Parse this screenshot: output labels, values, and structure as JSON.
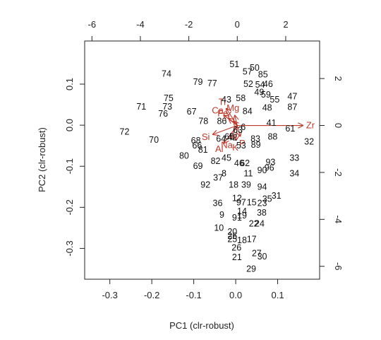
{
  "chart_data": {
    "type": "biplot",
    "xlabel": "PC1 (clr-robust)",
    "ylabel": "PC2 (clr-robust)",
    "xlim": [
      -0.36,
      0.2
    ],
    "ylim": [
      -0.375,
      0.205
    ],
    "x_ticks": [
      "-0.3",
      "-0.2",
      "-0.1",
      "0.0",
      "0.1"
    ],
    "y_ticks": [
      "-0.3",
      "-0.2",
      "-0.1",
      "0.0",
      "0.1"
    ],
    "top_axis": {
      "lim": [
        -6.3,
        3.4
      ],
      "ticks": [
        "-6",
        "-4",
        "-2",
        "0",
        "2"
      ]
    },
    "right_axis": {
      "lim": [
        -6.55,
        3.6
      ],
      "ticks": [
        "-6",
        "-4",
        "-2",
        "0",
        "2"
      ]
    },
    "arrow_color": "#c0392b",
    "observations": [
      {
        "label": "74",
        "x": -0.165,
        "y": 0.125
      },
      {
        "label": "79",
        "x": -0.09,
        "y": 0.105
      },
      {
        "label": "77",
        "x": -0.056,
        "y": 0.102
      },
      {
        "label": "51",
        "x": -0.003,
        "y": 0.148
      },
      {
        "label": "50",
        "x": 0.045,
        "y": 0.14
      },
      {
        "label": "57",
        "x": 0.028,
        "y": 0.13
      },
      {
        "label": "85",
        "x": 0.065,
        "y": 0.123
      },
      {
        "label": "52",
        "x": 0.03,
        "y": 0.1
      },
      {
        "label": "54",
        "x": 0.058,
        "y": 0.098
      },
      {
        "label": "46",
        "x": 0.077,
        "y": 0.1
      },
      {
        "label": "49",
        "x": 0.056,
        "y": 0.08
      },
      {
        "label": "59",
        "x": 0.072,
        "y": 0.074
      },
      {
        "label": "55",
        "x": 0.093,
        "y": 0.062
      },
      {
        "label": "47",
        "x": 0.135,
        "y": 0.07
      },
      {
        "label": "75",
        "x": -0.16,
        "y": 0.066
      },
      {
        "label": "71",
        "x": -0.225,
        "y": 0.045
      },
      {
        "label": "73",
        "x": -0.163,
        "y": 0.045
      },
      {
        "label": "76",
        "x": -0.173,
        "y": 0.028
      },
      {
        "label": "43",
        "x": -0.022,
        "y": 0.062
      },
      {
        "label": "58",
        "x": 0.012,
        "y": 0.066
      },
      {
        "label": "84",
        "x": 0.028,
        "y": 0.034
      },
      {
        "label": "48",
        "x": 0.075,
        "y": 0.042
      },
      {
        "label": "87",
        "x": 0.135,
        "y": 0.044
      },
      {
        "label": "67",
        "x": -0.105,
        "y": 0.033
      },
      {
        "label": "78",
        "x": -0.077,
        "y": 0.01
      },
      {
        "label": "86",
        "x": -0.033,
        "y": 0.01
      },
      {
        "label": "41",
        "x": 0.085,
        "y": 0.005
      },
      {
        "label": "61",
        "x": 0.13,
        "y": -0.008
      },
      {
        "label": "72",
        "x": -0.265,
        "y": -0.016
      },
      {
        "label": "70",
        "x": -0.195,
        "y": -0.036
      },
      {
        "label": "68",
        "x": -0.095,
        "y": -0.038
      },
      {
        "label": "66",
        "x": -0.092,
        "y": -0.05
      },
      {
        "label": "64",
        "x": -0.035,
        "y": -0.033
      },
      {
        "label": "83",
        "x": 0.047,
        "y": -0.033
      },
      {
        "label": "88",
        "x": 0.088,
        "y": -0.028
      },
      {
        "label": "89",
        "x": 0.048,
        "y": -0.048
      },
      {
        "label": "32",
        "x": 0.175,
        "y": -0.04
      },
      {
        "label": "81",
        "x": -0.078,
        "y": -0.06
      },
      {
        "label": "80",
        "x": -0.123,
        "y": -0.075
      },
      {
        "label": "45",
        "x": -0.022,
        "y": -0.08
      },
      {
        "label": "82",
        "x": -0.048,
        "y": -0.088
      },
      {
        "label": "46",
        "x": 0.008,
        "y": -0.093
      },
      {
        "label": "62",
        "x": 0.022,
        "y": -0.093
      },
      {
        "label": "69",
        "x": -0.09,
        "y": -0.1
      },
      {
        "label": "33",
        "x": 0.14,
        "y": -0.08
      },
      {
        "label": "93",
        "x": 0.083,
        "y": -0.09
      },
      {
        "label": "96",
        "x": 0.08,
        "y": -0.104
      },
      {
        "label": "90",
        "x": 0.063,
        "y": -0.11
      },
      {
        "label": "34",
        "x": 0.14,
        "y": -0.118
      },
      {
        "label": "8",
        "x": -0.028,
        "y": -0.118
      },
      {
        "label": "11",
        "x": 0.03,
        "y": -0.118
      },
      {
        "label": "37",
        "x": -0.042,
        "y": -0.128
      },
      {
        "label": "92",
        "x": -0.072,
        "y": -0.145
      },
      {
        "label": "18",
        "x": -0.005,
        "y": -0.145
      },
      {
        "label": "39",
        "x": 0.025,
        "y": -0.145
      },
      {
        "label": "94",
        "x": 0.063,
        "y": -0.15
      },
      {
        "label": "31",
        "x": 0.097,
        "y": -0.172
      },
      {
        "label": "35",
        "x": 0.075,
        "y": -0.18
      },
      {
        "label": "12",
        "x": 0.003,
        "y": -0.178
      },
      {
        "label": "97",
        "x": 0.013,
        "y": -0.188
      },
      {
        "label": "15",
        "x": 0.038,
        "y": -0.188
      },
      {
        "label": "23",
        "x": 0.063,
        "y": -0.19
      },
      {
        "label": "36",
        "x": -0.043,
        "y": -0.19
      },
      {
        "label": "14",
        "x": 0.015,
        "y": -0.21
      },
      {
        "label": "38",
        "x": 0.062,
        "y": -0.213
      },
      {
        "label": "9",
        "x": -0.033,
        "y": -0.218
      },
      {
        "label": "19",
        "x": 0.015,
        "y": -0.22
      },
      {
        "label": "91",
        "x": 0.003,
        "y": -0.225
      },
      {
        "label": "22",
        "x": 0.043,
        "y": -0.24
      },
      {
        "label": "24",
        "x": 0.057,
        "y": -0.24
      },
      {
        "label": "10",
        "x": -0.04,
        "y": -0.25
      },
      {
        "label": "20",
        "x": -0.008,
        "y": -0.26
      },
      {
        "label": "26",
        "x": -0.008,
        "y": -0.27
      },
      {
        "label": "17",
        "x": 0.038,
        "y": -0.278
      },
      {
        "label": "25",
        "x": -0.008,
        "y": -0.278
      },
      {
        "label": "18",
        "x": 0.015,
        "y": -0.28
      },
      {
        "label": "26",
        "x": 0.002,
        "y": -0.298
      },
      {
        "label": "27",
        "x": 0.05,
        "y": -0.312
      },
      {
        "label": "30",
        "x": 0.063,
        "y": -0.32
      },
      {
        "label": "21",
        "x": 0.003,
        "y": -0.322
      },
      {
        "label": "29",
        "x": 0.037,
        "y": -0.35
      },
      {
        "label": "42",
        "x": -0.008,
        "y": -0.03
      },
      {
        "label": "63",
        "x": 0.005,
        "y": -0.012
      },
      {
        "label": "65",
        "x": -0.015,
        "y": -0.028
      },
      {
        "label": "6",
        "x": 0.018,
        "y": -0.005
      },
      {
        "label": "53",
        "x": 0.013,
        "y": -0.05
      }
    ],
    "variables": [
      {
        "label": "Zr",
        "x": 2.7,
        "y": 0.0
      },
      {
        "label": "Si",
        "x": -1.0,
        "y": -0.38
      },
      {
        "label": "Y",
        "x": -0.15,
        "y": 0.18
      },
      {
        "label": "Ti",
        "x": -0.45,
        "y": 0.72
      },
      {
        "label": "Ca",
        "x": -0.55,
        "y": 0.43
      },
      {
        "label": "Mg",
        "x": -0.1,
        "y": 0.42
      },
      {
        "label": "Fe",
        "x": -0.35,
        "y": 0.3
      },
      {
        "label": "Al",
        "x": -0.55,
        "y": -0.75
      },
      {
        "label": "K",
        "x": -0.05,
        "y": -0.62
      },
      {
        "label": "Na",
        "x": -0.28,
        "y": -0.55
      },
      {
        "label": "P",
        "x": 0.12,
        "y": -0.45
      }
    ]
  }
}
